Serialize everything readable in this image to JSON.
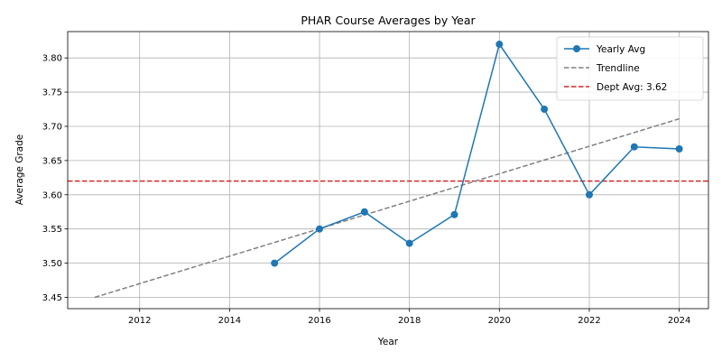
{
  "chart_data": {
    "type": "line",
    "title": "PHAR Course Averages by Year",
    "xlabel": "Year",
    "ylabel": "Average Grade",
    "xlim": [
      2010.4,
      2024.65
    ],
    "ylim": [
      3.4335,
      3.8385
    ],
    "x_ticks": [
      2012,
      2014,
      2016,
      2018,
      2020,
      2022,
      2024
    ],
    "y_ticks": [
      3.45,
      3.5,
      3.55,
      3.6,
      3.65,
      3.7,
      3.75,
      3.8
    ],
    "grid": true,
    "legend_position": "top-right",
    "series": [
      {
        "name": "Yearly Avg",
        "style": "line-marker",
        "color": "#1f77b4",
        "x": [
          2015,
          2016,
          2017,
          2018,
          2019,
          2020,
          2021,
          2022,
          2023,
          2024
        ],
        "y": [
          3.5,
          3.55,
          3.575,
          3.529,
          3.571,
          3.82,
          3.725,
          3.6,
          3.67,
          3.667
        ]
      },
      {
        "name": "Trendline",
        "style": "dashed",
        "color": "#808080",
        "x": [
          2011,
          2024
        ],
        "y": [
          3.45,
          3.711
        ]
      }
    ],
    "reference_line": {
      "name": "Dept Avg: 3.62",
      "value": 3.62,
      "color": "#d62728",
      "style": "dashed"
    }
  }
}
